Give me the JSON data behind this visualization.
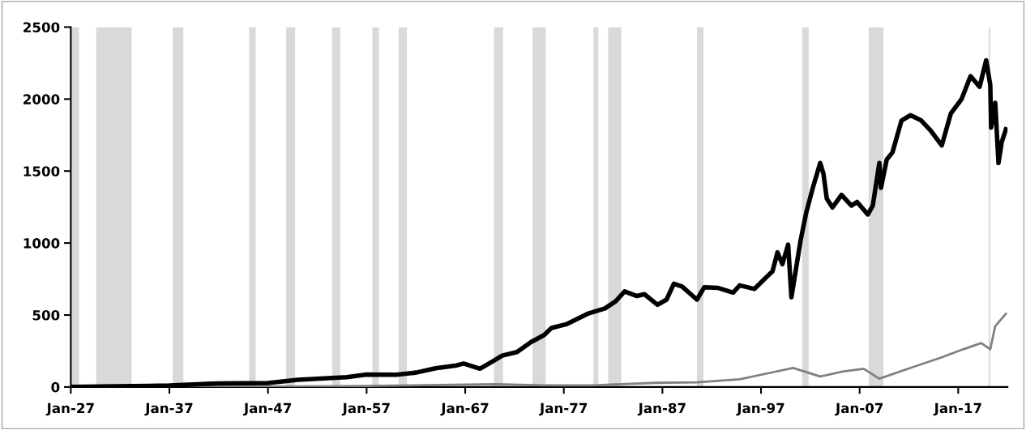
{
  "chart_data": {
    "type": "line",
    "xlim": [
      "1927-01",
      "2022-01"
    ],
    "ylim": [
      0,
      2500
    ],
    "xticks": [
      {
        "value": "1927-01",
        "label": "Jan-27"
      },
      {
        "value": "1937-01",
        "label": "Jan-37"
      },
      {
        "value": "1947-01",
        "label": "Jan-47"
      },
      {
        "value": "1957-01",
        "label": "Jan-57"
      },
      {
        "value": "1967-01",
        "label": "Jan-67"
      },
      {
        "value": "1977-01",
        "label": "Jan-77"
      },
      {
        "value": "1987-01",
        "label": "Jan-87"
      },
      {
        "value": "1997-01",
        "label": "Jan-97"
      },
      {
        "value": "2007-01",
        "label": "Jan-07"
      },
      {
        "value": "2017-01",
        "label": "Jan-17"
      }
    ],
    "yticks": [
      0,
      500,
      1000,
      1500,
      2000,
      2500
    ],
    "grid": false,
    "legend": false,
    "bands": [
      {
        "axis": "x",
        "from": "1927-01",
        "to": "1927-11",
        "color": "#d9d9d9"
      },
      {
        "axis": "x",
        "from": "1929-08",
        "to": "1933-03",
        "color": "#d9d9d9"
      },
      {
        "axis": "x",
        "from": "1937-05",
        "to": "1938-06",
        "color": "#d9d9d9"
      },
      {
        "axis": "x",
        "from": "1945-02",
        "to": "1945-10",
        "color": "#d9d9d9"
      },
      {
        "axis": "x",
        "from": "1948-11",
        "to": "1949-10",
        "color": "#d9d9d9"
      },
      {
        "axis": "x",
        "from": "1953-07",
        "to": "1954-05",
        "color": "#d9d9d9"
      },
      {
        "axis": "x",
        "from": "1957-08",
        "to": "1958-04",
        "color": "#d9d9d9"
      },
      {
        "axis": "x",
        "from": "1960-04",
        "to": "1961-02",
        "color": "#d9d9d9"
      },
      {
        "axis": "x",
        "from": "1969-12",
        "to": "1970-11",
        "color": "#d9d9d9"
      },
      {
        "axis": "x",
        "from": "1973-11",
        "to": "1975-03",
        "color": "#d9d9d9"
      },
      {
        "axis": "x",
        "from": "1980-01",
        "to": "1980-07",
        "color": "#d9d9d9"
      },
      {
        "axis": "x",
        "from": "1981-07",
        "to": "1982-11",
        "color": "#d9d9d9"
      },
      {
        "axis": "x",
        "from": "1990-07",
        "to": "1991-03",
        "color": "#d9d9d9"
      },
      {
        "axis": "x",
        "from": "2001-03",
        "to": "2001-11",
        "color": "#d9d9d9"
      },
      {
        "axis": "x",
        "from": "2007-12",
        "to": "2009-06",
        "color": "#d9d9d9"
      },
      {
        "axis": "x",
        "from": "2020-02",
        "to": "2020-04",
        "color": "#d9d9d9"
      }
    ],
    "series": [
      {
        "color": "#000000",
        "x": [
          "1927-01",
          "1930-01",
          "1935-01",
          "1937-01",
          "1942-01",
          "1947-01",
          "1950-01",
          "1955-01",
          "1957-01",
          "1960-01",
          "1962-01",
          "1964-01",
          "1966-01",
          "1966-11",
          "1968-07",
          "1969-11",
          "1970-10",
          "1972-04",
          "1973-09",
          "1975-01",
          "1975-10",
          "1977-04",
          "1979-06",
          "1981-03",
          "1982-04",
          "1983-03",
          "1984-06",
          "1985-03",
          "1986-07",
          "1987-06",
          "1988-03",
          "1989-01",
          "1990-07",
          "1991-04",
          "1992-09",
          "1994-03",
          "1994-11",
          "1996-05",
          "1997-06",
          "1998-03",
          "1998-09",
          "1999-03",
          "1999-10",
          "2000-02",
          "2001-01",
          "2001-08",
          "2002-04",
          "2003-01",
          "2003-05",
          "2003-09",
          "2004-04",
          "2005-03",
          "2006-03",
          "2006-10",
          "2007-11",
          "2008-05",
          "2009-01",
          "2009-03",
          "2009-10",
          "2010-05",
          "2011-04",
          "2012-03",
          "2013-04",
          "2014-04",
          "2015-05",
          "2016-04",
          "2017-05",
          "2018-04",
          "2019-03",
          "2019-11",
          "2020-04",
          "2020-05",
          "2020-10",
          "2021-02",
          "2021-06",
          "2021-11"
        ],
        "values": [
          0,
          3,
          8,
          10,
          25,
          28,
          50,
          68,
          87,
          85,
          100,
          130,
          148,
          163,
          127,
          180,
          218,
          243,
          312,
          361,
          410,
          436,
          509,
          546,
          595,
          664,
          632,
          645,
          571,
          607,
          718,
          698,
          607,
          693,
          688,
          656,
          706,
          681,
          755,
          804,
          935,
          853,
          989,
          624,
          1013,
          1210,
          1383,
          1556,
          1481,
          1309,
          1247,
          1334,
          1260,
          1285,
          1198,
          1260,
          1556,
          1383,
          1580,
          1630,
          1851,
          1888,
          1851,
          1777,
          1678,
          1900,
          1999,
          2159,
          2085,
          2269,
          2097,
          1802,
          1974,
          1556,
          1703,
          1789
        ]
      },
      {
        "color": "#808080",
        "x": [
          "1927-01",
          "1940-01",
          "1955-01",
          "1960-01",
          "1970-01",
          "1975-01",
          "1980-01",
          "1986-04",
          "1990-07",
          "1994-11",
          "1998-03",
          "2000-04",
          "2003-01",
          "2005-04",
          "2007-06",
          "2009-01",
          "2012-06",
          "2015-05",
          "2017-07",
          "2019-05",
          "2020-04",
          "2020-10",
          "2021-11"
        ],
        "values": [
          0,
          2,
          5,
          10,
          20,
          12,
          12,
          29,
          33,
          53,
          102,
          132,
          73,
          107,
          127,
          58,
          139,
          206,
          262,
          305,
          262,
          422,
          509
        ]
      }
    ]
  }
}
